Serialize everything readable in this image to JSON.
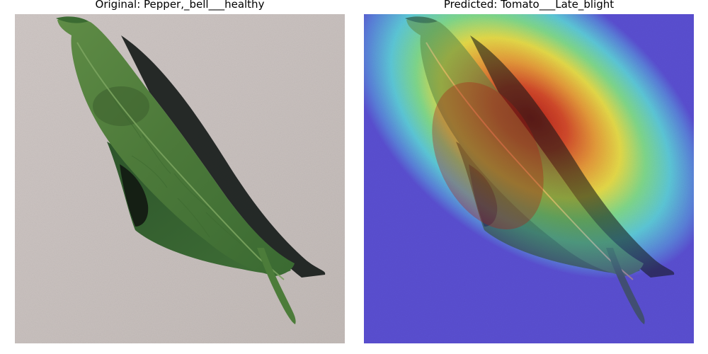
{
  "panels": {
    "original": {
      "title": "Original: Pepper,_bell___healthy"
    },
    "predicted": {
      "title": "Predicted: Tomato___Late_blight"
    }
  },
  "colors": {
    "background_stone": "#c9c2c0",
    "leaf_dark": "#2f5a2a",
    "leaf_mid": "#4f7d3c",
    "leaf_light": "#6f9a55",
    "shadow": "#151a19",
    "heatmap_cold": "#5a4fd0",
    "heatmap_cool": "#58c6d8",
    "heatmap_warm": "#e8dc4a",
    "heatmap_hot": "#c8281e"
  }
}
